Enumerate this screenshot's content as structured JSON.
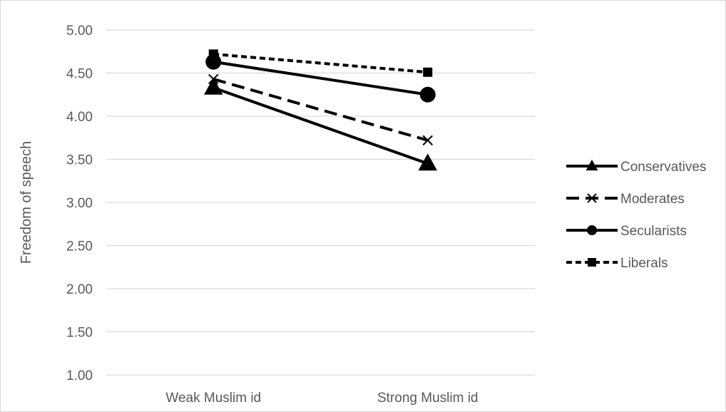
{
  "chart_data": {
    "type": "line",
    "title": "",
    "xlabel": "",
    "ylabel": "Freedom of speech",
    "ylim": [
      1.0,
      5.0
    ],
    "yticks": [
      "1.00",
      "1.50",
      "2.00",
      "2.50",
      "3.00",
      "3.50",
      "4.00",
      "4.50",
      "5.00"
    ],
    "ytick_values": [
      1.0,
      1.5,
      2.0,
      2.5,
      3.0,
      3.5,
      4.0,
      4.5,
      5.0
    ],
    "categories": [
      "Weak Muslim id",
      "Strong Muslim id"
    ],
    "grid": "horizontal",
    "legend_position": "right",
    "series": [
      {
        "name": "Conservatives",
        "values": [
          4.33,
          3.45
        ],
        "marker": "triangle",
        "dash": "solid",
        "color": "#000000"
      },
      {
        "name": "Moderates",
        "values": [
          4.43,
          3.72
        ],
        "marker": "x",
        "dash": "dashed",
        "color": "#000000"
      },
      {
        "name": "Secularists",
        "values": [
          4.63,
          4.25
        ],
        "marker": "circle",
        "dash": "solid",
        "color": "#000000"
      },
      {
        "name": "Liberals",
        "values": [
          4.72,
          4.51
        ],
        "marker": "square",
        "dash": "dotted",
        "color": "#000000"
      }
    ]
  }
}
